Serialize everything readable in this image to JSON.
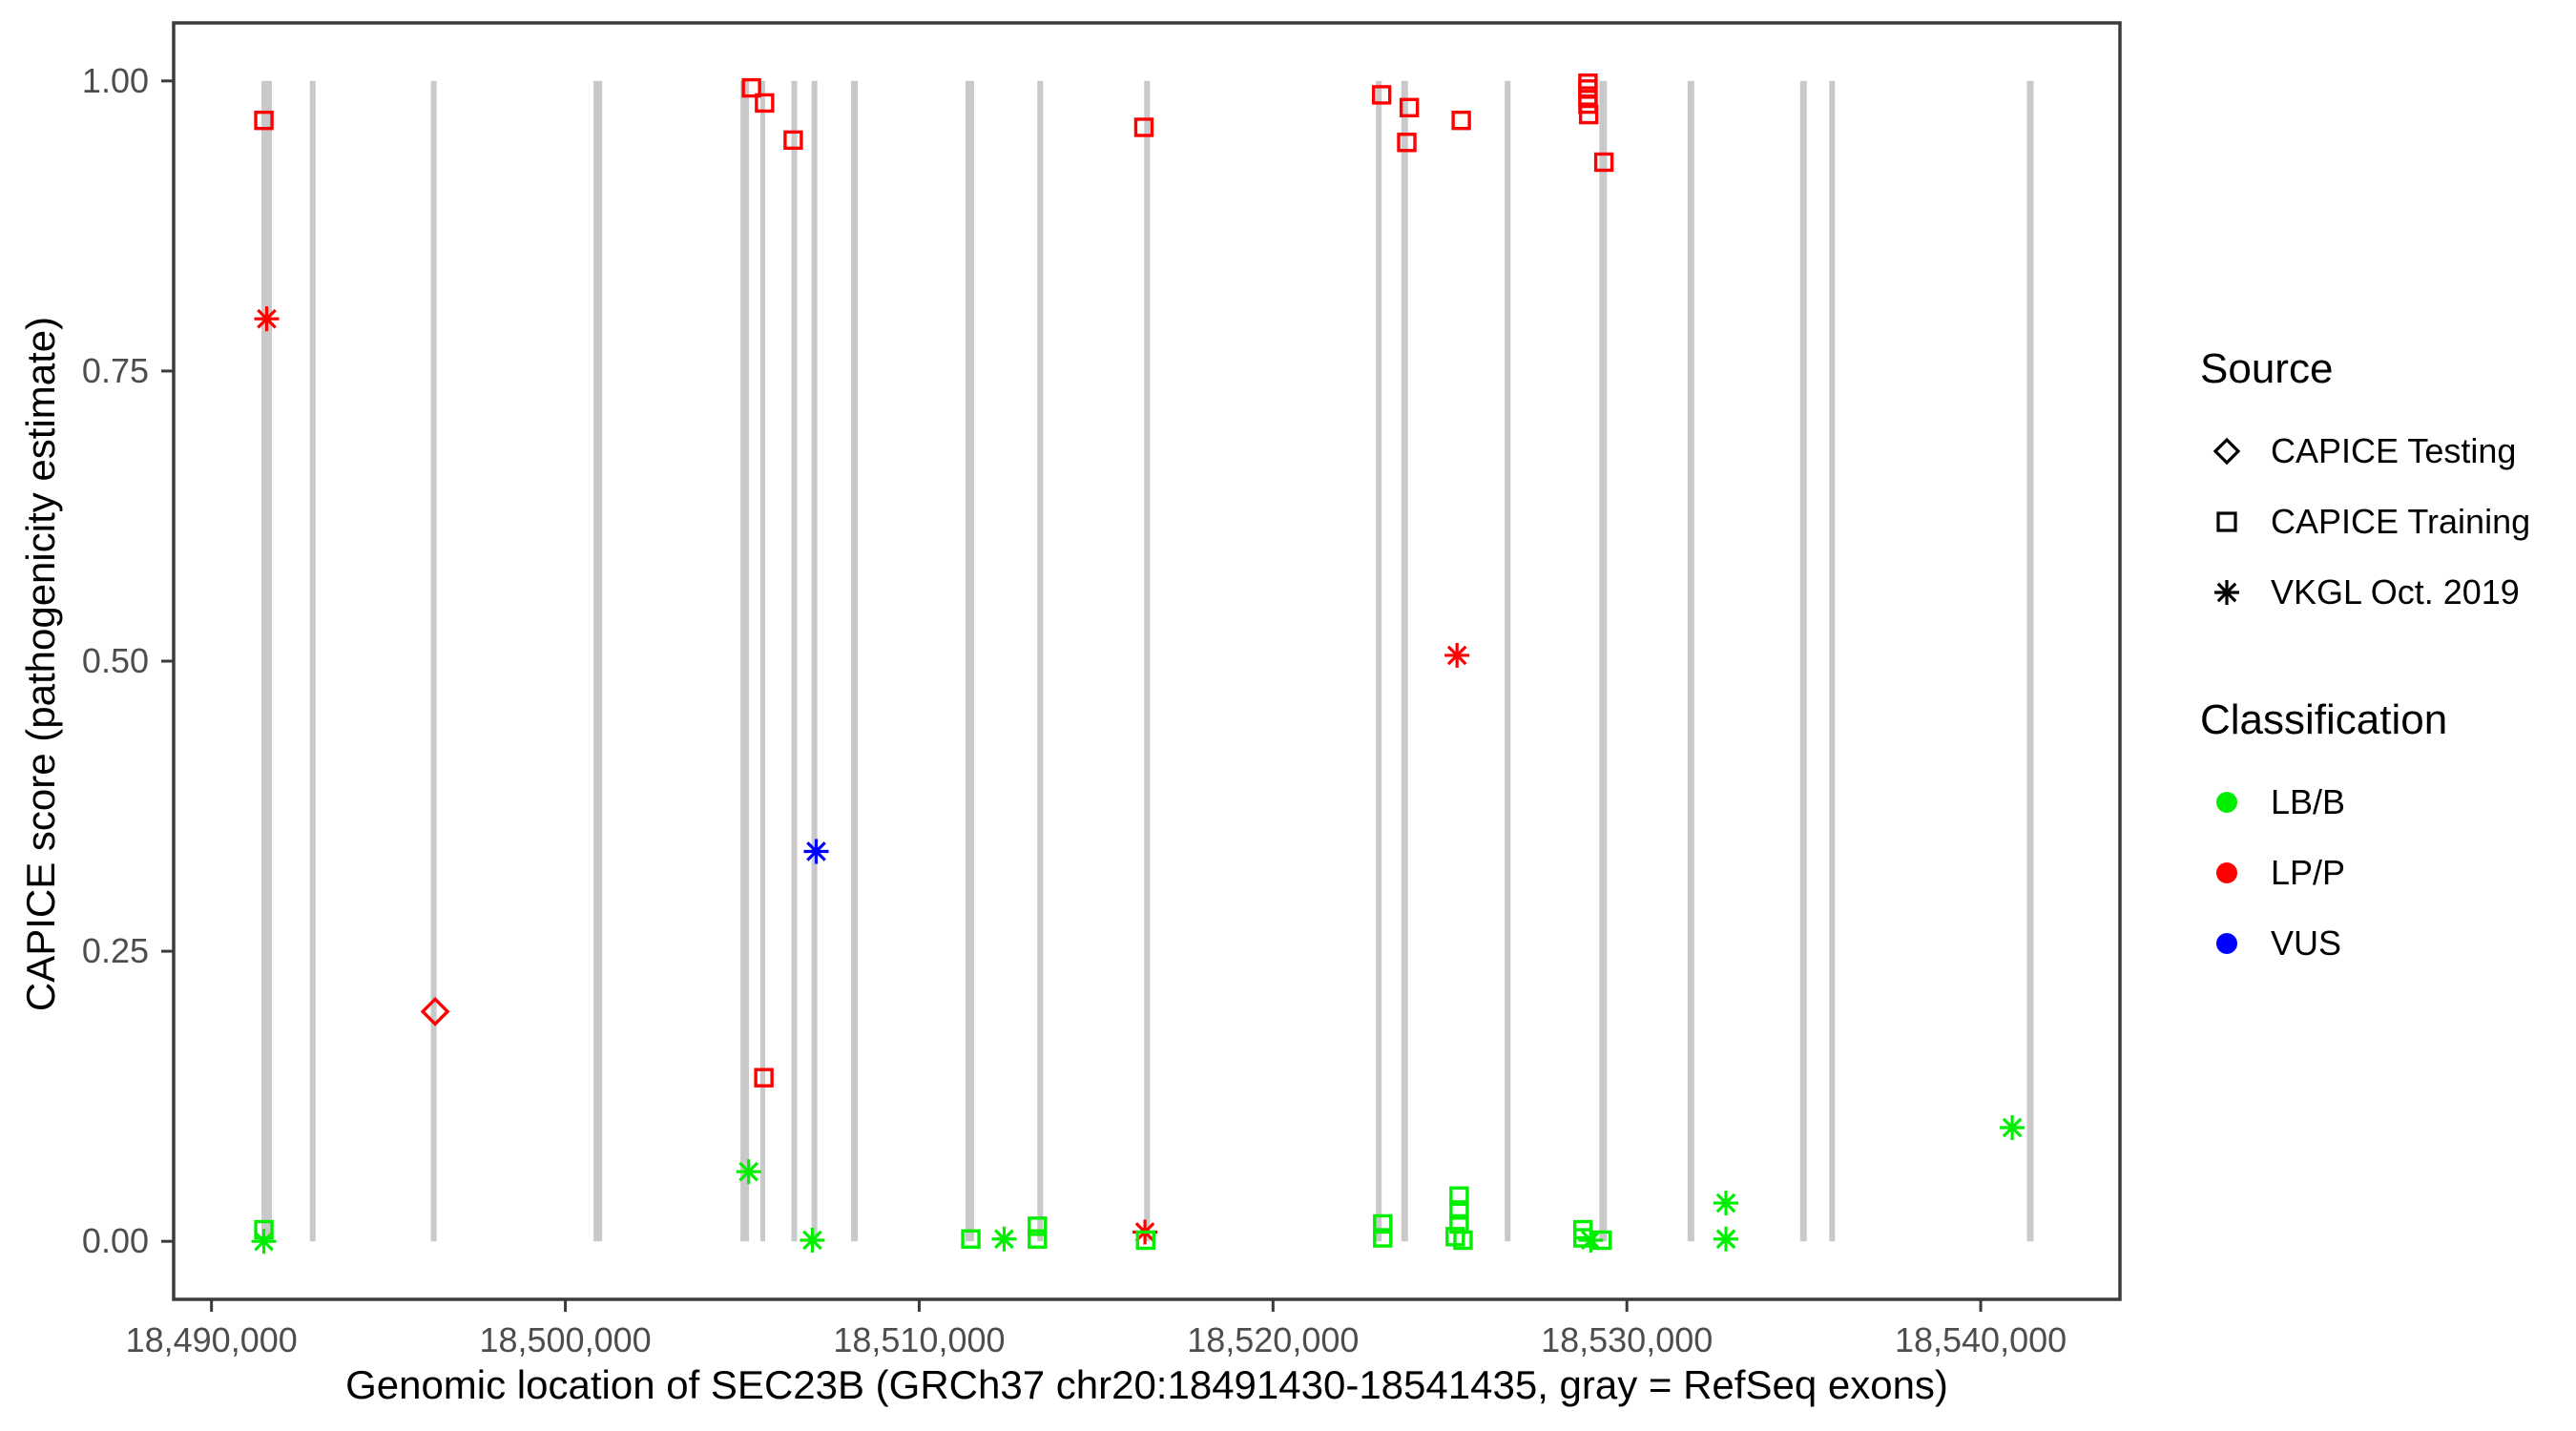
{
  "chart_data": {
    "type": "scatter",
    "title": "",
    "xlabel": "Genomic location of SEC23B (GRCh37 chr20:18491430-18541435, gray = RefSeq exons)",
    "ylabel": "CAPICE score (pathogenicity estimate)",
    "xlim": [
      18488930,
      18543935
    ],
    "ylim": [
      -0.05,
      1.05
    ],
    "grid": false,
    "x_ticks": [
      {
        "value": 18490000,
        "label": "18,490,000"
      },
      {
        "value": 18500000,
        "label": "18,500,000"
      },
      {
        "value": 18510000,
        "label": "18,510,000"
      },
      {
        "value": 18520000,
        "label": "18,520,000"
      },
      {
        "value": 18530000,
        "label": "18,530,000"
      },
      {
        "value": 18540000,
        "label": "18,540,000"
      }
    ],
    "y_ticks": [
      {
        "value": 0.0,
        "label": "0.00"
      },
      {
        "value": 0.25,
        "label": "0.25"
      },
      {
        "value": 0.5,
        "label": "0.50"
      },
      {
        "value": 0.75,
        "label": "0.75"
      },
      {
        "value": 1.0,
        "label": "1.00"
      }
    ],
    "exons_note": "gray vertical bars = RefSeq exons, drawn from score 0 to 1",
    "exons": [
      {
        "center": 18491560,
        "span": 296
      },
      {
        "center": 18492860,
        "span": 162
      },
      {
        "center": 18496280,
        "span": 162
      },
      {
        "center": 18500920,
        "span": 243
      },
      {
        "center": 18505070,
        "span": 243
      },
      {
        "center": 18505580,
        "span": 135
      },
      {
        "center": 18506470,
        "span": 162
      },
      {
        "center": 18507040,
        "span": 162
      },
      {
        "center": 18508170,
        "span": 189
      },
      {
        "center": 18511430,
        "span": 243
      },
      {
        "center": 18513420,
        "span": 162
      },
      {
        "center": 18516440,
        "span": 162
      },
      {
        "center": 18522990,
        "span": 162
      },
      {
        "center": 18523720,
        "span": 189
      },
      {
        "center": 18526630,
        "span": 162
      },
      {
        "center": 18529330,
        "span": 216
      },
      {
        "center": 18531810,
        "span": 189
      },
      {
        "center": 18534990,
        "span": 189
      },
      {
        "center": 18535800,
        "span": 162
      },
      {
        "center": 18541400,
        "span": 189
      }
    ],
    "points": [
      {
        "source": "CAPICE Training",
        "cls": "LP/P",
        "x": 18491480,
        "y": 0.966
      },
      {
        "source": "VKGL Oct. 2019",
        "cls": "LP/P",
        "x": 18491560,
        "y": 0.795
      },
      {
        "source": "CAPICE Testing",
        "cls": "LP/P",
        "x": 18496320,
        "y": 0.198
      },
      {
        "source": "CAPICE Training",
        "cls": "LP/P",
        "x": 18505260,
        "y": 0.994
      },
      {
        "source": "CAPICE Training",
        "cls": "LP/P",
        "x": 18505630,
        "y": 0.981
      },
      {
        "source": "CAPICE Training",
        "cls": "LP/P",
        "x": 18505610,
        "y": 0.141
      },
      {
        "source": "CAPICE Training",
        "cls": "LP/P",
        "x": 18506440,
        "y": 0.949
      },
      {
        "source": "VKGL Oct. 2019",
        "cls": "VUS",
        "x": 18507090,
        "y": 0.336
      },
      {
        "source": "CAPICE Training",
        "cls": "LP/P",
        "x": 18516350,
        "y": 0.96
      },
      {
        "source": "VKGL Oct. 2019",
        "cls": "LP/P",
        "x": 18516380,
        "y": 0.008
      },
      {
        "source": "CAPICE Training",
        "cls": "LP/P",
        "x": 18523070,
        "y": 0.988
      },
      {
        "source": "CAPICE Training",
        "cls": "LP/P",
        "x": 18523850,
        "y": 0.977
      },
      {
        "source": "CAPICE Training",
        "cls": "LP/P",
        "x": 18523780,
        "y": 0.947
      },
      {
        "source": "CAPICE Training",
        "cls": "LP/P",
        "x": 18525320,
        "y": 0.966
      },
      {
        "source": "VKGL Oct. 2019",
        "cls": "LP/P",
        "x": 18525200,
        "y": 0.505
      },
      {
        "source": "CAPICE Training",
        "cls": "LP/P",
        "x": 18528900,
        "y": 0.998
      },
      {
        "source": "CAPICE Training",
        "cls": "LP/P",
        "x": 18528900,
        "y": 0.993
      },
      {
        "source": "CAPICE Training",
        "cls": "LP/P",
        "x": 18528900,
        "y": 0.987
      },
      {
        "source": "CAPICE Training",
        "cls": "LP/P",
        "x": 18528900,
        "y": 0.98
      },
      {
        "source": "CAPICE Training",
        "cls": "LP/P",
        "x": 18528920,
        "y": 0.971
      },
      {
        "source": "CAPICE Training",
        "cls": "LP/P",
        "x": 18529350,
        "y": 0.93
      },
      {
        "source": "CAPICE Training",
        "cls": "LB/B",
        "x": 18491480,
        "y": 0.01
      },
      {
        "source": "VKGL Oct. 2019",
        "cls": "LB/B",
        "x": 18491480,
        "y": 0.0
      },
      {
        "source": "VKGL Oct. 2019",
        "cls": "LB/B",
        "x": 18505180,
        "y": 0.06
      },
      {
        "source": "VKGL Oct. 2019",
        "cls": "LB/B",
        "x": 18506980,
        "y": 0.001
      },
      {
        "source": "CAPICE Training",
        "cls": "LB/B",
        "x": 18511460,
        "y": 0.002
      },
      {
        "source": "VKGL Oct. 2019",
        "cls": "LB/B",
        "x": 18512400,
        "y": 0.002
      },
      {
        "source": "CAPICE Training",
        "cls": "LB/B",
        "x": 18513340,
        "y": 0.013
      },
      {
        "source": "CAPICE Training",
        "cls": "LB/B",
        "x": 18513340,
        "y": 0.002
      },
      {
        "source": "CAPICE Training",
        "cls": "LB/B",
        "x": 18516400,
        "y": 0.001
      },
      {
        "source": "CAPICE Training",
        "cls": "LB/B",
        "x": 18523100,
        "y": 0.015
      },
      {
        "source": "CAPICE Training",
        "cls": "LB/B",
        "x": 18523100,
        "y": 0.003
      },
      {
        "source": "CAPICE Training",
        "cls": "LB/B",
        "x": 18525260,
        "y": 0.039
      },
      {
        "source": "CAPICE Training",
        "cls": "LB/B",
        "x": 18525260,
        "y": 0.027
      },
      {
        "source": "CAPICE Training",
        "cls": "LB/B",
        "x": 18525260,
        "y": 0.015
      },
      {
        "source": "CAPICE Training",
        "cls": "LB/B",
        "x": 18525150,
        "y": 0.004
      },
      {
        "source": "CAPICE Training",
        "cls": "LB/B",
        "x": 18525370,
        "y": 0.001
      },
      {
        "source": "CAPICE Training",
        "cls": "LB/B",
        "x": 18528760,
        "y": 0.01
      },
      {
        "source": "CAPICE Training",
        "cls": "LB/B",
        "x": 18528760,
        "y": 0.003
      },
      {
        "source": "VKGL Oct. 2019",
        "cls": "LB/B",
        "x": 18528980,
        "y": 0.001
      },
      {
        "source": "CAPICE Training",
        "cls": "LB/B",
        "x": 18529300,
        "y": 0.001
      },
      {
        "source": "VKGL Oct. 2019",
        "cls": "LB/B",
        "x": 18532800,
        "y": 0.033
      },
      {
        "source": "VKGL Oct. 2019",
        "cls": "LB/B",
        "x": 18532800,
        "y": 0.002
      },
      {
        "source": "VKGL Oct. 2019",
        "cls": "LB/B",
        "x": 18540890,
        "y": 0.098
      }
    ],
    "legend_position": "right"
  },
  "legend": {
    "source": {
      "title": "Source",
      "items": [
        {
          "label": "CAPICE Testing",
          "shape": "diamond"
        },
        {
          "label": "CAPICE Training",
          "shape": "square"
        },
        {
          "label": "VKGL Oct. 2019",
          "shape": "asterisk"
        }
      ]
    },
    "classification": {
      "title": "Classification",
      "items": [
        {
          "label": "LB/B",
          "color": "#00EE00"
        },
        {
          "label": "LP/P",
          "color": "#FF0000"
        },
        {
          "label": "VUS",
          "color": "#0000FF"
        }
      ]
    }
  },
  "colors": {
    "exon_bar": "#C9C9C9",
    "panel_border": "#3B3B3B",
    "tick_label": "#4D4D4D",
    "axis_title": "#000000",
    "background": "#FFFFFF"
  }
}
